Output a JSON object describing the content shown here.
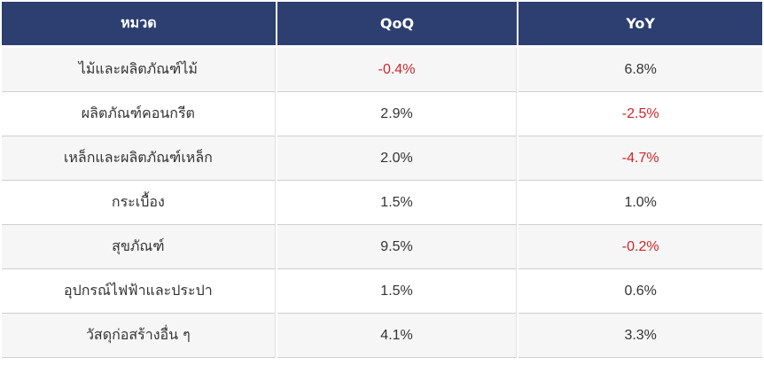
{
  "table": {
    "headers": [
      "หมวด",
      "QoQ",
      "YoY"
    ],
    "rows": [
      {
        "category": "ไม้และผลิตภัณฑ์ไม้",
        "qoq": "-0.4%",
        "yoy": "6.8%"
      },
      {
        "category": "ผลิตภัณฑ์คอนกรีต",
        "qoq": "2.9%",
        "yoy": "-2.5%"
      },
      {
        "category": "เหล็กและผลิตภัณฑ์เหล็ก",
        "qoq": "2.0%",
        "yoy": "-4.7%"
      },
      {
        "category": "กระเบื้อง",
        "qoq": "1.5%",
        "yoy": "1.0%"
      },
      {
        "category": "สุขภัณฑ์",
        "qoq": "9.5%",
        "yoy": "-0.2%"
      },
      {
        "category": "อุปกรณ์ไฟฟ้าและประปา",
        "qoq": "1.5%",
        "yoy": "0.6%"
      },
      {
        "category": "วัสดุก่อสร้างอื่น ๆ",
        "qoq": "4.1%",
        "yoy": "3.3%"
      }
    ]
  },
  "colors": {
    "header_bg": "#2c3f70",
    "negative": "#d2262a",
    "text": "#333333"
  }
}
